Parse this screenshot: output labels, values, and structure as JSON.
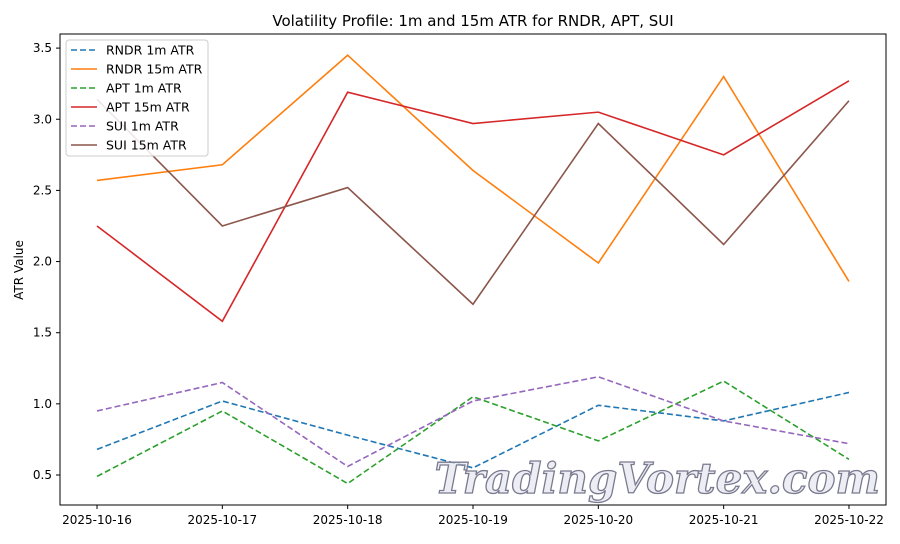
{
  "chart_data": {
    "type": "line",
    "title": "Volatility Profile: 1m and 15m ATR for RNDR, APT, SUI",
    "xlabel": "",
    "ylabel": "ATR Value",
    "ylim": [
      0.28,
      3.61
    ],
    "yticks": [
      "0.5",
      "1.0",
      "1.5",
      "2.0",
      "2.5",
      "3.0",
      "3.5"
    ],
    "x": [
      "2025-10-16",
      "2025-10-17",
      "2025-10-18",
      "2025-10-19",
      "2025-10-20",
      "2025-10-21",
      "2025-10-22"
    ],
    "legend_position": "top-left",
    "grid": false,
    "series": [
      {
        "name": "RNDR 1m ATR",
        "color": "#1f77b4",
        "dashed": true,
        "values": [
          0.68,
          1.02,
          0.78,
          0.55,
          0.99,
          0.88,
          1.08
        ]
      },
      {
        "name": "RNDR 15m ATR",
        "color": "#ff7f0e",
        "dashed": false,
        "values": [
          2.57,
          2.68,
          3.45,
          2.64,
          1.99,
          3.3,
          1.86
        ]
      },
      {
        "name": "APT 1m ATR",
        "color": "#2ca02c",
        "dashed": true,
        "values": [
          0.49,
          0.95,
          0.44,
          1.05,
          0.74,
          1.16,
          0.61
        ]
      },
      {
        "name": "APT 15m ATR",
        "color": "#d62728",
        "dashed": false,
        "values": [
          2.25,
          1.58,
          3.19,
          2.97,
          3.05,
          2.75,
          3.27
        ]
      },
      {
        "name": "SUI 1m ATR",
        "color": "#9467bd",
        "dashed": true,
        "values": [
          0.95,
          1.15,
          0.56,
          1.02,
          1.19,
          0.88,
          0.72
        ]
      },
      {
        "name": "SUI 15m ATR",
        "color": "#8c564b",
        "dashed": false,
        "values": [
          3.14,
          2.25,
          2.52,
          1.7,
          2.97,
          2.12,
          3.13
        ]
      }
    ]
  },
  "watermark": "TradingVortex.com"
}
